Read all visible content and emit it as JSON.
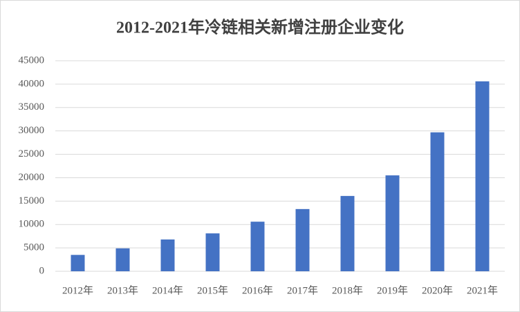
{
  "chart_data": {
    "type": "bar",
    "title": "2012-2021年冷链相关新增注册企业变化",
    "categories": [
      "2012年",
      "2013年",
      "2014年",
      "2015年",
      "2016年",
      "2017年",
      "2018年",
      "2019年",
      "2020年",
      "2021年"
    ],
    "values": [
      3500,
      4900,
      6800,
      8100,
      10600,
      13300,
      16100,
      20500,
      29700,
      40600
    ],
    "color": "#4472c4",
    "ylim": [
      0,
      45000
    ],
    "yticks": [
      0,
      5000,
      10000,
      15000,
      20000,
      25000,
      30000,
      35000,
      40000,
      45000
    ],
    "grid": true
  }
}
